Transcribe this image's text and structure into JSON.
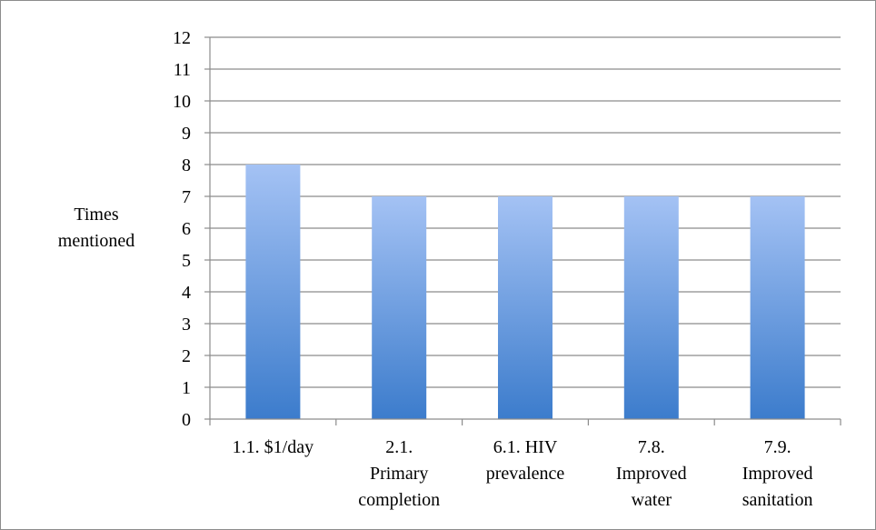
{
  "chart_data": {
    "type": "bar",
    "title": "",
    "xlabel": "",
    "ylabel": "Times mentioned",
    "ylabel_lines": [
      "Times",
      "mentioned"
    ],
    "categories": [
      "1.1. $1/day",
      "2.1. Primary completion",
      "6.1. HIV prevalence",
      "7.8. Improved water",
      "7.9. Improved sanitation"
    ],
    "category_lines": [
      [
        "1.1. $1/day"
      ],
      [
        "2.1.",
        "Primary",
        "completion"
      ],
      [
        "6.1. HIV",
        "prevalence"
      ],
      [
        "7.8.",
        "Improved",
        "water"
      ],
      [
        "7.9.",
        "Improved",
        "sanitation"
      ]
    ],
    "values": [
      8,
      7,
      7,
      7,
      7
    ],
    "ylim": [
      0,
      12
    ],
    "yticks": [
      0,
      1,
      2,
      3,
      4,
      5,
      6,
      7,
      8,
      9,
      10,
      11,
      12
    ],
    "grid": true,
    "legend": "none",
    "colors": {
      "bar_top": "#a4c2f4",
      "bar_bottom": "#3c7ccc",
      "grid": "#8c8c8c",
      "axis": "#8c8c8c",
      "frame": "#8c8c8c"
    }
  }
}
